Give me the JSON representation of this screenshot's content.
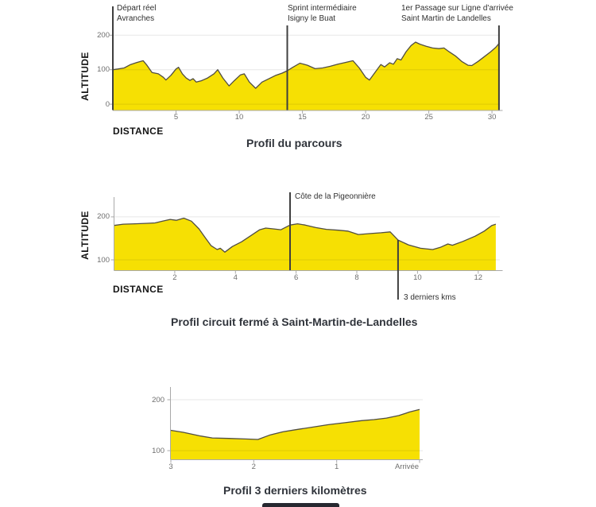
{
  "page": {
    "background": "#ffffff"
  },
  "colors": {
    "area_fill": "#F6E003",
    "curve_stroke": "#514E42",
    "gridline": "rgba(17,17,17,0.10)",
    "axis_line": "#A9A9A9",
    "tick_label": "#6E6E6E",
    "annotation_line": "#3F3F3F",
    "annotation_text": "#303030",
    "title_text": "#30343B",
    "axis_label_text": "#141414",
    "bottom_bar": "#262830"
  },
  "chart_data": [
    {
      "type": "area",
      "title": "Profil du parcours",
      "xlabel": "DISTANCE",
      "ylabel": "ALTITUDE",
      "xlim": [
        0,
        30.62
      ],
      "ylim": [
        -17,
        226
      ],
      "grid": "horizontal",
      "x_ticks": [
        {
          "v": 5,
          "label": "5"
        },
        {
          "v": 10,
          "label": "10"
        },
        {
          "v": 15,
          "label": "15"
        },
        {
          "v": 20,
          "label": "20"
        },
        {
          "v": 25,
          "label": "25"
        },
        {
          "v": 30,
          "label": "30"
        }
      ],
      "y_ticks": [
        {
          "v": 0,
          "label": "0"
        },
        {
          "v": 100,
          "label": "100"
        },
        {
          "v": 200,
          "label": "200"
        }
      ],
      "annotations": [
        {
          "x": 0,
          "lines": [
            "Départ réel",
            "Avranches"
          ]
        },
        {
          "x": 13.8,
          "lines": [
            "Sprint intermédiaire",
            "Isigny le Buat"
          ]
        },
        {
          "x": 30.55,
          "lines": [
            "1er Passage sur Ligne d'arrivée",
            "Saint Martin de Landelles"
          ]
        }
      ],
      "points": [
        [
          0,
          100
        ],
        [
          0.4,
          102
        ],
        [
          0.9,
          105
        ],
        [
          1.4,
          115
        ],
        [
          1.9,
          121
        ],
        [
          2.4,
          126
        ],
        [
          2.7,
          113
        ],
        [
          3.1,
          92
        ],
        [
          3.6,
          88
        ],
        [
          4.0,
          78
        ],
        [
          4.2,
          70
        ],
        [
          4.6,
          84
        ],
        [
          5.0,
          102
        ],
        [
          5.2,
          107
        ],
        [
          5.5,
          88
        ],
        [
          5.8,
          76
        ],
        [
          6.1,
          69
        ],
        [
          6.35,
          74
        ],
        [
          6.6,
          64
        ],
        [
          7.0,
          68
        ],
        [
          7.5,
          76
        ],
        [
          8.0,
          88
        ],
        [
          8.3,
          100
        ],
        [
          8.7,
          76
        ],
        [
          9.2,
          53
        ],
        [
          9.6,
          68
        ],
        [
          10.1,
          85
        ],
        [
          10.4,
          88
        ],
        [
          10.8,
          64
        ],
        [
          11.3,
          46
        ],
        [
          11.8,
          64
        ],
        [
          12.3,
          73
        ],
        [
          12.9,
          84
        ],
        [
          13.4,
          90
        ],
        [
          13.8,
          97
        ],
        [
          14.2,
          106
        ],
        [
          14.8,
          119
        ],
        [
          15.4,
          113
        ],
        [
          16.0,
          103
        ],
        [
          16.6,
          105
        ],
        [
          17.2,
          110
        ],
        [
          17.8,
          116
        ],
        [
          18.4,
          121
        ],
        [
          19.0,
          126
        ],
        [
          19.5,
          105
        ],
        [
          20.0,
          78
        ],
        [
          20.3,
          70
        ],
        [
          20.9,
          100
        ],
        [
          21.2,
          115
        ],
        [
          21.5,
          108
        ],
        [
          21.9,
          120
        ],
        [
          22.2,
          116
        ],
        [
          22.5,
          132
        ],
        [
          22.8,
          128
        ],
        [
          23.2,
          152
        ],
        [
          23.6,
          170
        ],
        [
          23.95,
          180
        ],
        [
          24.3,
          174
        ],
        [
          24.8,
          168
        ],
        [
          25.3,
          163
        ],
        [
          25.8,
          161
        ],
        [
          26.2,
          163
        ],
        [
          26.6,
          152
        ],
        [
          27.1,
          140
        ],
        [
          27.6,
          124
        ],
        [
          28.1,
          113
        ],
        [
          28.4,
          112
        ],
        [
          28.9,
          124
        ],
        [
          29.4,
          138
        ],
        [
          29.9,
          152
        ],
        [
          30.3,
          165
        ],
        [
          30.6,
          178
        ]
      ]
    },
    {
      "type": "area",
      "title": "Profil circuit fermé à Saint-Martin-de-Landelles",
      "xlabel": "DISTANCE",
      "ylabel": "ALTITUDE",
      "xlim": [
        0,
        12.7
      ],
      "ylim": [
        76,
        246
      ],
      "grid": "horizontal",
      "x_ticks": [
        {
          "v": 2,
          "label": "2"
        },
        {
          "v": 4,
          "label": "4"
        },
        {
          "v": 6,
          "label": "6"
        },
        {
          "v": 8,
          "label": "8"
        },
        {
          "v": 10,
          "label": "10"
        },
        {
          "v": 12,
          "label": "12"
        }
      ],
      "y_ticks": [
        {
          "v": 100,
          "label": "100"
        },
        {
          "v": 200,
          "label": "200"
        }
      ],
      "annotations": [
        {
          "x": 5.8,
          "lines": [
            "Côte de la Pigeonnière"
          ]
        },
        {
          "x": 9.36,
          "lines": [
            "3 derniers kms"
          ]
        }
      ],
      "points": [
        [
          0,
          180
        ],
        [
          0.3,
          183
        ],
        [
          0.7,
          184
        ],
        [
          1.1,
          185
        ],
        [
          1.35,
          186
        ],
        [
          1.6,
          190
        ],
        [
          1.85,
          194
        ],
        [
          2.05,
          192
        ],
        [
          2.3,
          197
        ],
        [
          2.55,
          190
        ],
        [
          2.8,
          172
        ],
        [
          3.0,
          152
        ],
        [
          3.2,
          133
        ],
        [
          3.4,
          124
        ],
        [
          3.5,
          127
        ],
        [
          3.65,
          118
        ],
        [
          3.9,
          131
        ],
        [
          4.2,
          142
        ],
        [
          4.5,
          156
        ],
        [
          4.8,
          170
        ],
        [
          5.0,
          174
        ],
        [
          5.25,
          172
        ],
        [
          5.5,
          170
        ],
        [
          5.8,
          181
        ],
        [
          6.05,
          184
        ],
        [
          6.3,
          181
        ],
        [
          6.65,
          175
        ],
        [
          7.0,
          171
        ],
        [
          7.4,
          169
        ],
        [
          7.7,
          167
        ],
        [
          8.05,
          159
        ],
        [
          8.4,
          161
        ],
        [
          8.8,
          163
        ],
        [
          9.1,
          165
        ],
        [
          9.36,
          146
        ],
        [
          9.7,
          135
        ],
        [
          10.1,
          127
        ],
        [
          10.5,
          124
        ],
        [
          10.75,
          129
        ],
        [
          11.0,
          137
        ],
        [
          11.15,
          134
        ],
        [
          11.5,
          143
        ],
        [
          11.9,
          155
        ],
        [
          12.2,
          167
        ],
        [
          12.45,
          180
        ],
        [
          12.58,
          183
        ]
      ]
    },
    {
      "type": "area",
      "title": "Profil 3 derniers kilomètres",
      "xlabel": "",
      "ylabel": "",
      "xlim": [
        3,
        0
      ],
      "ylim": [
        83,
        225
      ],
      "grid": "horizontal",
      "x_ticks": [
        {
          "v": 3,
          "label": "3"
        },
        {
          "v": 2,
          "label": "2"
        },
        {
          "v": 1,
          "label": "1"
        },
        {
          "v": 0,
          "label": "Arrivée"
        }
      ],
      "y_ticks": [
        {
          "v": 100,
          "label": "100"
        },
        {
          "v": 200,
          "label": "200"
        }
      ],
      "annotations": [],
      "points": [
        [
          3.0,
          140
        ],
        [
          2.85,
          136
        ],
        [
          2.65,
          129
        ],
        [
          2.5,
          125
        ],
        [
          2.3,
          124
        ],
        [
          2.1,
          123
        ],
        [
          1.95,
          122
        ],
        [
          1.8,
          131
        ],
        [
          1.65,
          137
        ],
        [
          1.5,
          141
        ],
        [
          1.3,
          146
        ],
        [
          1.1,
          151
        ],
        [
          0.9,
          155
        ],
        [
          0.7,
          159
        ],
        [
          0.55,
          161
        ],
        [
          0.4,
          164
        ],
        [
          0.25,
          169
        ],
        [
          0.12,
          176
        ],
        [
          0,
          181
        ]
      ]
    }
  ]
}
